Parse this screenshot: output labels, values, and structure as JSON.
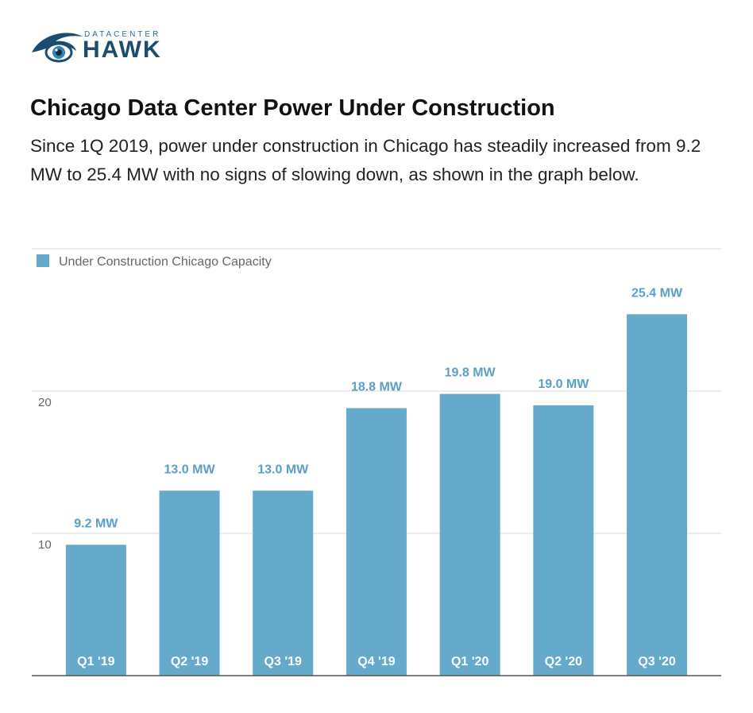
{
  "brand": {
    "small": "DATACENTER",
    "big": "HAWK"
  },
  "title": "Chicago Data Center Power Under Construction",
  "subtitle": "Since 1Q 2019, power under construction in Chicago has steadily increased from 9.2 MW to 25.4 MW with no signs of slowing down, as shown in the graph below.",
  "colors": {
    "bar": "#65a9cb",
    "bar_label": "#5aa0c6",
    "grid": "#d9d9d9",
    "axis": "#555555",
    "tick": "#666666",
    "category_text": "#ffffff",
    "logo_dark": "#1d4d6e"
  },
  "chart_data": {
    "type": "bar",
    "categories": [
      "Q1 '19",
      "Q2 '19",
      "Q3 '19",
      "Q4 '19",
      "Q1 '20",
      "Q2 '20",
      "Q3 '20"
    ],
    "series": [
      {
        "name": "Under Construction Chicago Capacity",
        "values": [
          9.2,
          13.0,
          13.0,
          18.8,
          19.8,
          19.0,
          25.4
        ]
      }
    ],
    "data_labels": [
      "9.2 MW",
      "13.0 MW",
      "13.0 MW",
      "18.8 MW",
      "19.8 MW",
      "19.0 MW",
      "25.4 MW"
    ],
    "yticks": [
      10,
      20
    ],
    "ylim": [
      0,
      30
    ],
    "grid": true,
    "legend": "top-left"
  }
}
